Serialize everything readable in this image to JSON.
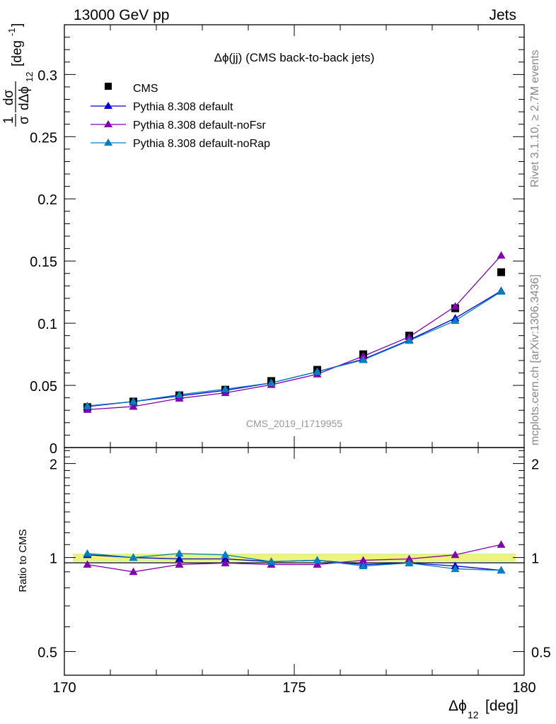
{
  "header": {
    "left": "13000 GeV pp",
    "right": "Jets"
  },
  "side_labels": {
    "rivet": "Rivet 3.1.10, ≥ 2.7M events",
    "mcplots": "mcplots.cern.ch [arXiv:1306.3436]"
  },
  "chart_data": [
    {
      "type": "scatter",
      "panel": "main",
      "title": "Δϕ(jj) (CMS back-to-back jets)",
      "watermark": "CMS_2019_I1719955",
      "ylabel": {
        "frac1_num": "1",
        "frac1_den": "σ",
        "frac2_num": "dσ",
        "frac2_den": "dΔϕ",
        "frac2_den_sub": "12",
        "unit": "[deg",
        "unit_sup": "-1",
        "unit_end": "]"
      },
      "xlim": [
        170,
        180
      ],
      "ylim": [
        0,
        0.34
      ],
      "yticks": [
        "0",
        "0.05",
        "0.1",
        "0.15",
        "0.2",
        "0.25",
        "0.3"
      ],
      "x": [
        170.5,
        171.5,
        172.5,
        173.5,
        174.5,
        175.5,
        176.5,
        177.5,
        178.5,
        179.5
      ],
      "series": [
        {
          "name": "CMS",
          "style": "marker",
          "color": "#000000",
          "values": [
            0.0325,
            0.037,
            0.042,
            0.0465,
            0.0535,
            0.0625,
            0.075,
            0.09,
            0.112,
            0.141
          ]
        },
        {
          "name": "Pythia 8.308 default",
          "style": "line",
          "color": "#0000cc",
          "values": [
            0.033,
            0.037,
            0.0415,
            0.046,
            0.052,
            0.061,
            0.071,
            0.0865,
            0.104,
            0.126
          ]
        },
        {
          "name": "Pythia 8.308 default-noFsr",
          "style": "line",
          "color": "#8000b0",
          "values": [
            0.0305,
            0.033,
            0.0395,
            0.044,
            0.0505,
            0.059,
            0.0735,
            0.089,
            0.1135,
            0.1545
          ]
        },
        {
          "name": "Pythia 8.308 default-noRap",
          "style": "line",
          "color": "#0080c0",
          "values": [
            0.0335,
            0.037,
            0.0425,
            0.047,
            0.052,
            0.061,
            0.0705,
            0.086,
            0.102,
            0.1255
          ]
        }
      ]
    },
    {
      "type": "line",
      "panel": "ratio",
      "xlabel": "Δϕ",
      "xlabel_sub": "12",
      "xlabel_unit": "[deg]",
      "ylabel": "Ratio to CMS",
      "xlim": [
        170,
        180
      ],
      "ylim": [
        0.42,
        2.25
      ],
      "log_y": true,
      "xticks": [
        "170",
        "175",
        "180"
      ],
      "yticks": [
        "0.5",
        "1",
        "2"
      ],
      "band": {
        "low": 0.97,
        "high": 1.03,
        "inner_low": 0.985,
        "inner_high": 1.015
      },
      "x": [
        170.5,
        171.5,
        172.5,
        173.5,
        174.5,
        175.5,
        176.5,
        177.5,
        178.5,
        179.5
      ],
      "series": [
        {
          "name": "Pythia 8.308 default",
          "color": "#0000cc",
          "values": [
            1.02,
            1.0,
            0.99,
            0.99,
            0.97,
            0.98,
            0.95,
            0.96,
            0.94,
            0.91
          ]
        },
        {
          "name": "Pythia 8.308 default-noFsr",
          "color": "#8000b0",
          "values": [
            0.95,
            0.9,
            0.95,
            0.96,
            0.95,
            0.95,
            0.98,
            0.99,
            1.02,
            1.1
          ]
        },
        {
          "name": "Pythia 8.308 default-noRap",
          "color": "#0080c0",
          "values": [
            1.03,
            1.0,
            1.03,
            1.02,
            0.97,
            0.98,
            0.94,
            0.96,
            0.92,
            0.91
          ]
        }
      ]
    }
  ]
}
